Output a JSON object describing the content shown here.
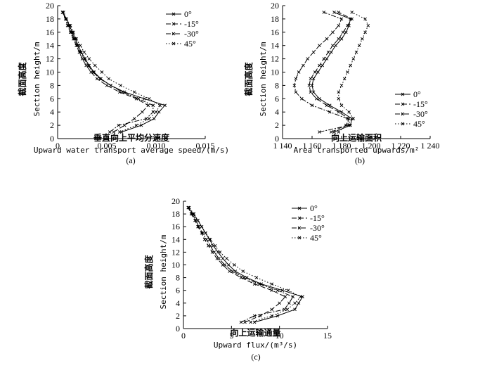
{
  "chart_data": [
    {
      "type": "line",
      "panel": "(a)",
      "xlabel_zh": "垂直向上平均分速度",
      "xlabel_en": "Upward water transport average speed/(m/s)",
      "ylabel_zh": "截面高度",
      "ylabel_en": "Section height/m",
      "xlim": [
        0,
        0.015
      ],
      "ylim": [
        0,
        20
      ],
      "xticks": [
        "0",
        "0.005",
        "0.010",
        "0.015"
      ],
      "yticks": [
        "0",
        "2",
        "4",
        "6",
        "8",
        "10",
        "12",
        "14",
        "16",
        "18",
        "20"
      ],
      "legend_position": "top-right",
      "series": [
        {
          "name": "0°",
          "y": [
            1,
            2,
            3,
            4,
            5,
            6,
            7,
            8,
            9,
            10,
            11,
            12,
            13,
            14,
            15,
            16,
            17,
            18,
            19
          ],
          "x": [
            0.0065,
            0.0085,
            0.0098,
            0.0103,
            0.0109,
            0.0088,
            0.0068,
            0.0054,
            0.0044,
            0.0037,
            0.0032,
            0.0028,
            0.0024,
            0.0021,
            0.0018,
            0.0015,
            0.0012,
            0.0009,
            0.0005
          ]
        },
        {
          "name": "-15°",
          "y": [
            1,
            2,
            3,
            4,
            5,
            6,
            7,
            8,
            9,
            10,
            11,
            12,
            13,
            14,
            15,
            16,
            17,
            18,
            19
          ],
          "x": [
            0.0057,
            0.0068,
            0.0078,
            0.0086,
            0.0092,
            0.008,
            0.0063,
            0.005,
            0.004,
            0.0034,
            0.0029,
            0.0025,
            0.0022,
            0.0019,
            0.0016,
            0.0013,
            0.001,
            0.0008,
            0.0005
          ]
        },
        {
          "name": "-30°",
          "y": [
            1,
            2,
            3,
            4,
            5,
            6,
            7,
            8,
            9,
            10,
            11,
            12,
            13,
            14,
            15,
            16,
            17,
            18,
            19
          ],
          "x": [
            0.0053,
            0.0062,
            0.009,
            0.0097,
            0.0097,
            0.0082,
            0.0066,
            0.0054,
            0.0043,
            0.0036,
            0.0031,
            0.0027,
            0.0023,
            0.002,
            0.0017,
            0.0014,
            0.0011,
            0.0008,
            0.0005
          ]
        },
        {
          "name": "45°",
          "y": [
            1,
            2,
            3,
            4,
            5,
            6,
            7,
            8,
            9,
            10,
            11,
            12,
            13,
            14,
            15,
            16,
            17,
            18,
            19
          ],
          "x": [
            0.0063,
            0.008,
            0.0093,
            0.01,
            0.0104,
            0.0093,
            0.0078,
            0.0064,
            0.0052,
            0.0045,
            0.0038,
            0.0032,
            0.0027,
            0.0023,
            0.0019,
            0.0016,
            0.0013,
            0.0009,
            0.0006
          ]
        }
      ]
    },
    {
      "type": "line",
      "panel": "(b)",
      "xlabel_zh": "向上运输面积",
      "xlabel_en": "Area transported upwards/m²",
      "ylabel_zh": "截面高度",
      "ylabel_en": "Section height/m",
      "xlim": [
        1140,
        1240
      ],
      "ylim": [
        0,
        20
      ],
      "xticks": [
        "1 140",
        "1 160",
        "1 180",
        "1 200",
        "1 220",
        "1 240"
      ],
      "yticks": [
        "0",
        "2",
        "4",
        "6",
        "8",
        "10",
        "12",
        "14",
        "16",
        "18",
        "20"
      ],
      "legend_position": "bottom-right",
      "series": [
        {
          "name": "0°",
          "y": [
            1,
            2,
            3,
            4,
            5,
            6,
            7,
            8,
            9,
            10,
            11,
            12,
            13,
            14,
            15,
            16,
            17,
            18,
            19
          ],
          "x": [
            1175,
            1186,
            1187,
            1180,
            1172,
            1165,
            1161,
            1160,
            1161,
            1164,
            1167,
            1170,
            1173,
            1176,
            1180,
            1183,
            1185,
            1186,
            1175
          ]
        },
        {
          "name": "-15°",
          "y": [
            1,
            2,
            3,
            4,
            5,
            6,
            7,
            8,
            9,
            10,
            11,
            12,
            13,
            14,
            15,
            16,
            17,
            18,
            19
          ],
          "x": [
            1173,
            1183,
            1185,
            1178,
            1170,
            1163,
            1159,
            1158,
            1159,
            1162,
            1165,
            1168,
            1171,
            1174,
            1178,
            1181,
            1184,
            1187,
            1178
          ]
        },
        {
          "name": "-30°",
          "y": [
            1,
            2,
            3,
            4,
            5,
            6,
            7,
            8,
            9,
            10,
            11,
            12,
            13,
            14,
            15,
            16,
            17,
            18,
            19
          ],
          "x": [
            1165,
            1185,
            1184,
            1172,
            1160,
            1153,
            1149,
            1148,
            1149,
            1151,
            1154,
            1157,
            1161,
            1165,
            1170,
            1174,
            1178,
            1180,
            1168
          ]
        },
        {
          "name": "45°",
          "y": [
            1,
            2,
            3,
            4,
            5,
            6,
            7,
            8,
            9,
            10,
            11,
            12,
            13,
            14,
            15,
            16,
            17,
            18,
            19
          ],
          "x": [
            1178,
            1183,
            1188,
            1185,
            1180,
            1178,
            1178,
            1180,
            1182,
            1184,
            1186,
            1188,
            1190,
            1192,
            1194,
            1196,
            1198,
            1196,
            1187
          ]
        }
      ]
    },
    {
      "type": "line",
      "panel": "(c)",
      "xlabel_zh": "向上运输通量",
      "xlabel_en": "Upward flux/(m³/s)",
      "ylabel_zh": "截面高度",
      "ylabel_en": "Section height/m",
      "xlim": [
        0,
        15
      ],
      "ylim": [
        0,
        20
      ],
      "xticks": [
        "0",
        "5",
        "10",
        "15"
      ],
      "yticks": [
        "0",
        "2",
        "4",
        "6",
        "8",
        "10",
        "12",
        "14",
        "16",
        "18",
        "20"
      ],
      "legend_position": "top-right",
      "series": [
        {
          "name": "0°",
          "y": [
            1,
            2,
            3,
            4,
            5,
            6,
            7,
            8,
            9,
            10,
            11,
            12,
            13,
            14,
            15,
            16,
            17,
            18,
            19
          ],
          "x": [
            7.4,
            9.8,
            11.6,
            12.0,
            12.4,
            10.3,
            8.1,
            6.6,
            5.4,
            4.7,
            4.1,
            3.6,
            3.1,
            2.7,
            2.3,
            1.9,
            1.5,
            1.0,
            0.5
          ]
        },
        {
          "name": "-15°",
          "y": [
            1,
            2,
            3,
            4,
            5,
            6,
            7,
            8,
            9,
            10,
            11,
            12,
            13,
            14,
            15,
            16,
            17,
            18,
            19
          ],
          "x": [
            6.4,
            8.0,
            9.2,
            10.0,
            10.6,
            9.2,
            7.4,
            6.0,
            4.8,
            4.1,
            3.5,
            3.0,
            2.6,
            2.2,
            1.9,
            1.5,
            1.2,
            0.8,
            0.5
          ]
        },
        {
          "name": "-30°",
          "y": [
            1,
            2,
            3,
            4,
            5,
            6,
            7,
            8,
            9,
            10,
            11,
            12,
            13,
            14,
            15,
            16,
            17,
            18,
            19
          ],
          "x": [
            6.0,
            7.4,
            10.5,
            11.0,
            11.4,
            9.8,
            7.9,
            6.3,
            5.1,
            4.3,
            3.7,
            3.2,
            2.8,
            2.4,
            2.0,
            1.6,
            1.3,
            0.9,
            0.5
          ]
        },
        {
          "name": "45°",
          "y": [
            1,
            2,
            3,
            4,
            5,
            6,
            7,
            8,
            9,
            10,
            11,
            12,
            13,
            14,
            15,
            16,
            17,
            18,
            19
          ],
          "x": [
            7.0,
            9.2,
            10.8,
            11.6,
            12.2,
            10.9,
            9.2,
            7.6,
            6.2,
            5.3,
            4.5,
            3.8,
            3.3,
            2.8,
            2.3,
            1.9,
            1.5,
            1.1,
            0.6
          ]
        }
      ]
    }
  ]
}
